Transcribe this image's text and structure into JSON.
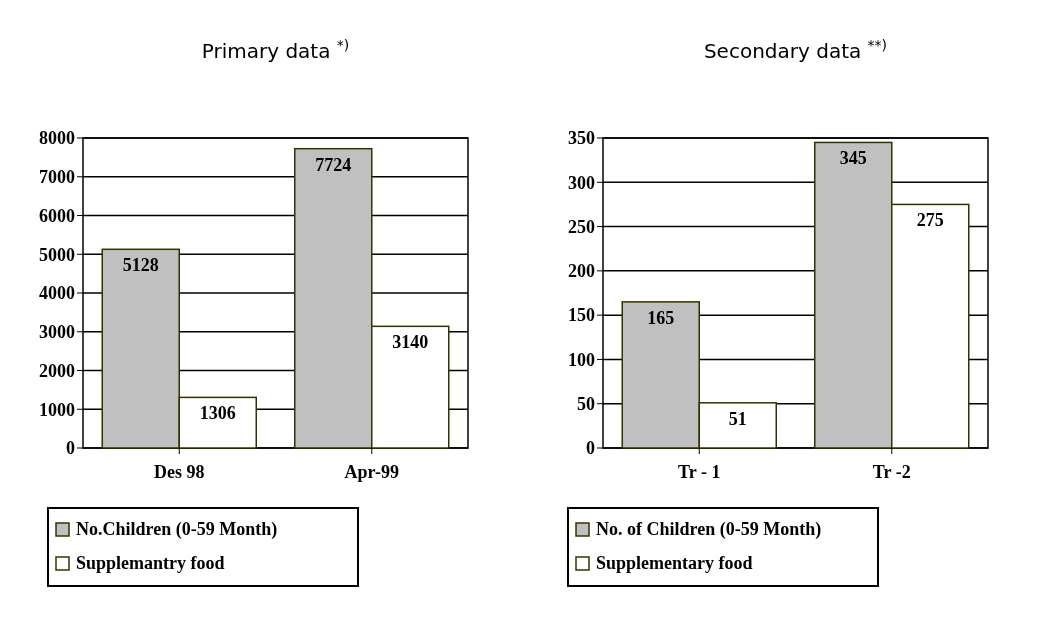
{
  "chart_data": [
    {
      "type": "bar",
      "title": "Primary data $^{*)}$",
      "categories": [
        "Des 98",
        "Apr-99"
      ],
      "series": [
        {
          "name": "No.Children (0-59 Month)",
          "color": "#c0c0c0",
          "values": [
            5128,
            7724
          ]
        },
        {
          "name": "Supplemantry food",
          "color": "#ffffff",
          "values": [
            1306,
            3140
          ]
        }
      ],
      "ylim": [
        0,
        8000
      ],
      "yticks": [
        0,
        1000,
        2000,
        3000,
        4000,
        5000,
        6000,
        7000,
        8000
      ],
      "grid": "y",
      "legend": "bottom",
      "data_labels": true
    },
    {
      "type": "bar",
      "title": "Secondary data $^{**)}$",
      "categories": [
        "Tr - 1",
        "Tr -2"
      ],
      "series": [
        {
          "name": "No. of Children (0-59 Month)",
          "color": "#c0c0c0",
          "values": [
            165,
            345
          ]
        },
        {
          "name": "Supplementary food",
          "color": "#ffffff",
          "values": [
            51,
            275
          ]
        }
      ],
      "ylim": [
        0,
        350
      ],
      "yticks": [
        0,
        50,
        100,
        150,
        200,
        250,
        300,
        350
      ],
      "grid": "y",
      "legend": "bottom",
      "data_labels": true
    }
  ]
}
